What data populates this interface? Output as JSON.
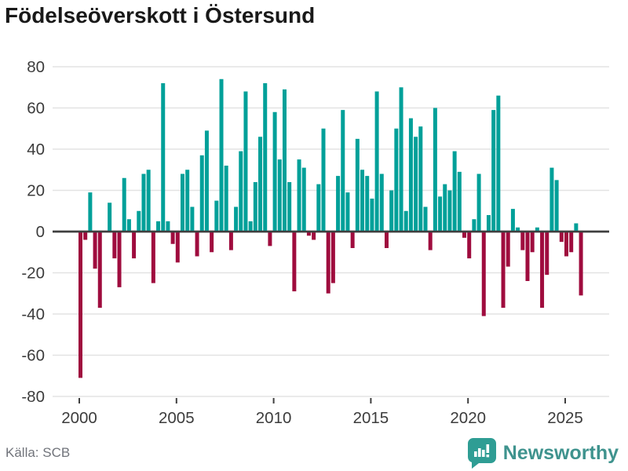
{
  "title": "Födelseöverskott i Östersund",
  "source": "Källa: SCB",
  "branding": {
    "name": "Newsworthy",
    "logo_color": "#2f9d94"
  },
  "chart_data": {
    "type": "bar",
    "title": "Födelseöverskott i Östersund",
    "frequency": "quarterly",
    "start_quarter": "2000Q1",
    "end_quarter": "2025Q4",
    "values": [
      -71,
      -4,
      19,
      -18,
      -37,
      0,
      14,
      -13,
      -27,
      26,
      6,
      -13,
      10,
      28,
      30,
      -25,
      5,
      72,
      5,
      -6,
      -15,
      28,
      30,
      12,
      -12,
      37,
      49,
      -10,
      15,
      74,
      32,
      -9,
      12,
      39,
      68,
      5,
      24,
      46,
      72,
      -7,
      58,
      35,
      69,
      24,
      -29,
      35,
      31,
      -2,
      -4,
      23,
      50,
      -30,
      -25,
      27,
      59,
      19,
      -8,
      45,
      30,
      27,
      16,
      68,
      28,
      -8,
      20,
      50,
      70,
      10,
      55,
      46,
      51,
      12,
      -9,
      60,
      17,
      23,
      20,
      39,
      29,
      -3,
      -13,
      6,
      28,
      -41,
      8,
      59,
      66,
      -37,
      -17,
      11,
      2,
      -9,
      -24,
      -10,
      2,
      -37,
      -21,
      31,
      25,
      -5,
      -12,
      -10,
      4,
      -31
    ],
    "x_tick_labels": [
      "2000",
      "2005",
      "2010",
      "2015",
      "2020",
      "2025"
    ],
    "y_tick_labels": [
      "80",
      "60",
      "40",
      "20",
      "0",
      "-20",
      "-40",
      "-60",
      "-80"
    ],
    "y_tick_values": [
      80,
      60,
      40,
      20,
      0,
      -20,
      -40,
      -60,
      -80
    ],
    "ylim": [
      -80,
      80
    ],
    "grid": "horizontal",
    "legend": "none",
    "positive_color": "#00a099",
    "negative_color": "#9f0c3e"
  }
}
